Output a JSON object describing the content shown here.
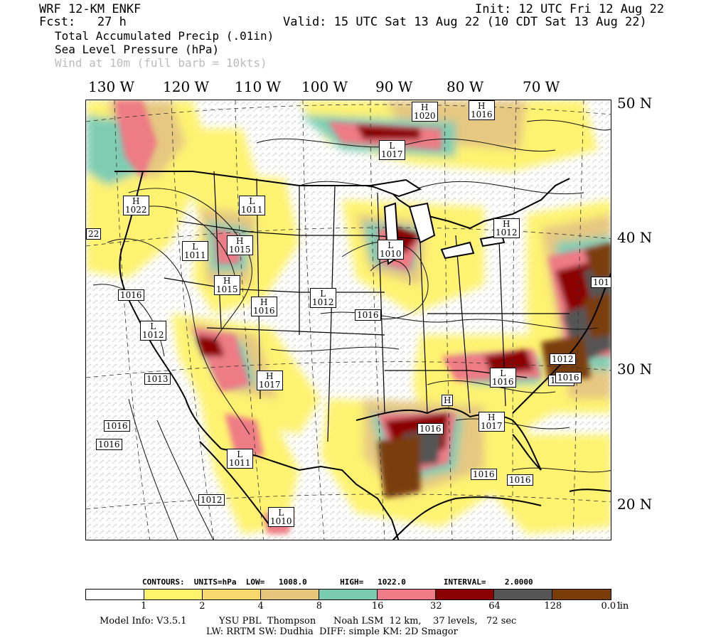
{
  "header": {
    "model": "WRF 12-KM ENKF",
    "forecast": "Fcst:   27 h",
    "init": "Init: 12 UTC Fri 12 Aug 22",
    "valid": "Valid: 15 UTC Sat 13 Aug 22 (10 CDT Sat 13 Aug 22)",
    "fields": [
      "Total Accumulated Precip (.01in)",
      "Sea Level Pressure (hPa)",
      "Wind at 10m (full barb = 10kts)"
    ]
  },
  "longitude_labels": [
    "130 W",
    "120 W",
    "110 W",
    "100 W",
    "90 W",
    "80 W",
    "70 W"
  ],
  "latitude_labels": [
    "50 N",
    "40 N",
    "30 N",
    "20 N"
  ],
  "pressure_centers": [
    {
      "type": "H",
      "value": "1020"
    },
    {
      "type": "H",
      "value": "1016"
    },
    {
      "type": "L",
      "value": "1017"
    },
    {
      "type": "L",
      "value": "1011"
    },
    {
      "type": "H",
      "value": "1022"
    },
    {
      "type": "",
      "value": "22"
    },
    {
      "type": "H",
      "value": "1012"
    },
    {
      "type": "L",
      "value": "1011"
    },
    {
      "type": "H",
      "value": "1015"
    },
    {
      "type": "L",
      "value": "1010"
    },
    {
      "type": "H",
      "value": "1015"
    },
    {
      "type": "",
      "value": "1016"
    },
    {
      "type": "H",
      "value": "1016"
    },
    {
      "type": "L",
      "value": "1012"
    },
    {
      "type": "",
      "value": "1016"
    },
    {
      "type": "L",
      "value": "1012"
    },
    {
      "type": "",
      "value": "1013"
    },
    {
      "type": "H",
      "value": "1017"
    },
    {
      "type": "L",
      "value": "1016"
    },
    {
      "type": "",
      "value": "1012"
    },
    {
      "type": "",
      "value": "1016"
    },
    {
      "type": "H",
      "value": ""
    },
    {
      "type": "",
      "value": "1016"
    },
    {
      "type": "H",
      "value": "1017"
    },
    {
      "type": "",
      "value": "1016"
    },
    {
      "type": "",
      "value": "1016"
    },
    {
      "type": "",
      "value": "1016"
    },
    {
      "type": "L",
      "value": "1011"
    },
    {
      "type": "",
      "value": "1012"
    },
    {
      "type": "L",
      "value": "1010"
    },
    {
      "type": "",
      "value": "1016"
    },
    {
      "type": "",
      "value": "1016"
    },
    {
      "type": "",
      "value": "101"
    }
  ],
  "contours": {
    "line": "CONTOURS:  UNITS=hPa  LOW=   1008.0       HIGH=   1022.0        INTERVAL=    2.0000"
  },
  "colorbar": {
    "colors": [
      "#ffffff",
      "#fff36b",
      "#f7d86c",
      "#e5c67b",
      "#7acbb0",
      "#ee7b85",
      "#8b0000",
      "#555555",
      "#7a3d0a"
    ],
    "labels": [
      "1",
      "2",
      "4",
      "8",
      "16",
      "32",
      "64",
      "128",
      "0.01"
    ],
    "units": "in"
  },
  "footer": {
    "line1": "Model Info: V3.5.1           YSU PBL  Thompson      Noah LSM  12 km,    37 levels,   72 sec",
    "line2": "LW: RRTM SW: Dudhia  DIFF: simple KM: 2D Smagor"
  }
}
